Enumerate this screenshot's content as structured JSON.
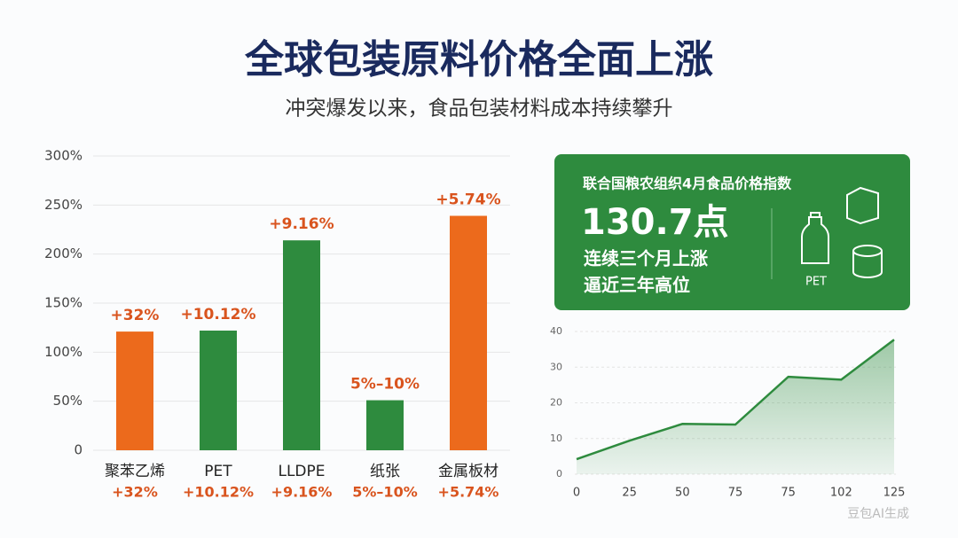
{
  "header": {
    "title": "全球包装原料价格全面上涨",
    "subtitle": "冲突爆发以来，食品包装材料成本持续攀升"
  },
  "chart_data": [
    {
      "type": "bar",
      "categories": [
        "聚苯乙烯",
        "PET",
        "LLDPE",
        "纸张",
        "金属板材"
      ],
      "values": [
        121,
        122,
        214,
        51,
        239
      ],
      "colors": [
        "#ec6a1c",
        "#2e8b3e",
        "#2e8b3e",
        "#2e8b3e",
        "#ec6a1c"
      ],
      "annotations": [
        "+32%",
        "+10.12%",
        "+9.16%",
        "5%–10%",
        "+5.74%"
      ],
      "sublabels": [
        "+32%",
        "+10.12%",
        "+9.16%",
        "5%–10%",
        "+5.74%"
      ],
      "ylim": [
        0,
        300
      ],
      "yticks": [
        0,
        {
          "value": 50,
          "label": "50%"
        },
        {
          "value": 100,
          "label": "100%"
        },
        {
          "value": 150,
          "label": "150%"
        },
        {
          "value": 200,
          "label": "200%"
        },
        {
          "value": 250,
          "label": "250%"
        },
        {
          "value": 300,
          "label": "300%"
        }
      ],
      "grid": true
    },
    {
      "type": "area",
      "categories": [
        "0",
        "25",
        "50",
        "75",
        "75",
        "102",
        "125"
      ],
      "values": [
        4.2,
        9.4,
        14.1,
        13.9,
        27.3,
        26.5,
        37.7
      ],
      "color": "#2e8b3e",
      "ylim": [
        0,
        40
      ],
      "yticks": [
        0,
        10,
        20,
        30,
        40
      ],
      "grid": true
    }
  ],
  "card": {
    "title": "联合国粮农组织4月食品价格指数",
    "value": "130.7点",
    "lines": [
      "连续三个月上涨",
      "逼近三年高位"
    ],
    "icon_label": "PET"
  },
  "watermark": "豆包AI生成"
}
